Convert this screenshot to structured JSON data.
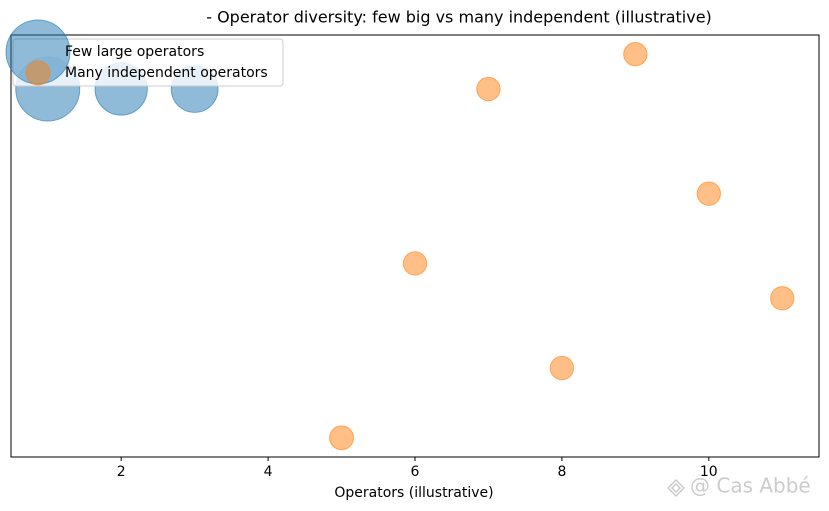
{
  "chart_data": {
    "type": "scatter",
    "title": "- Operator diversity: few big vs many independent (illustrative)",
    "x_label": "Operators (illustrative)",
    "xlim": [
      0.5,
      11.5
    ],
    "xticks": [
      2,
      4,
      6,
      8,
      10
    ],
    "ylim": [
      0.45,
      12.55
    ],
    "legend_position": "upper left",
    "series": [
      {
        "name": "Few large operators",
        "color": "#1f77b4",
        "x": [
          1,
          2,
          3
        ],
        "values": [
          11,
          11,
          11
        ],
        "sizes": [
          3000,
          2000,
          1600
        ]
      },
      {
        "name": "Many independent operators",
        "color": "#ff7f0e",
        "x": [
          5,
          6,
          7,
          8,
          9,
          10,
          11
        ],
        "values": [
          1,
          6,
          11,
          3,
          12,
          8,
          5
        ],
        "sizes": [
          420,
          400,
          400,
          400,
          400,
          400,
          400
        ]
      }
    ]
  },
  "watermark": "@ Cas Abbé"
}
